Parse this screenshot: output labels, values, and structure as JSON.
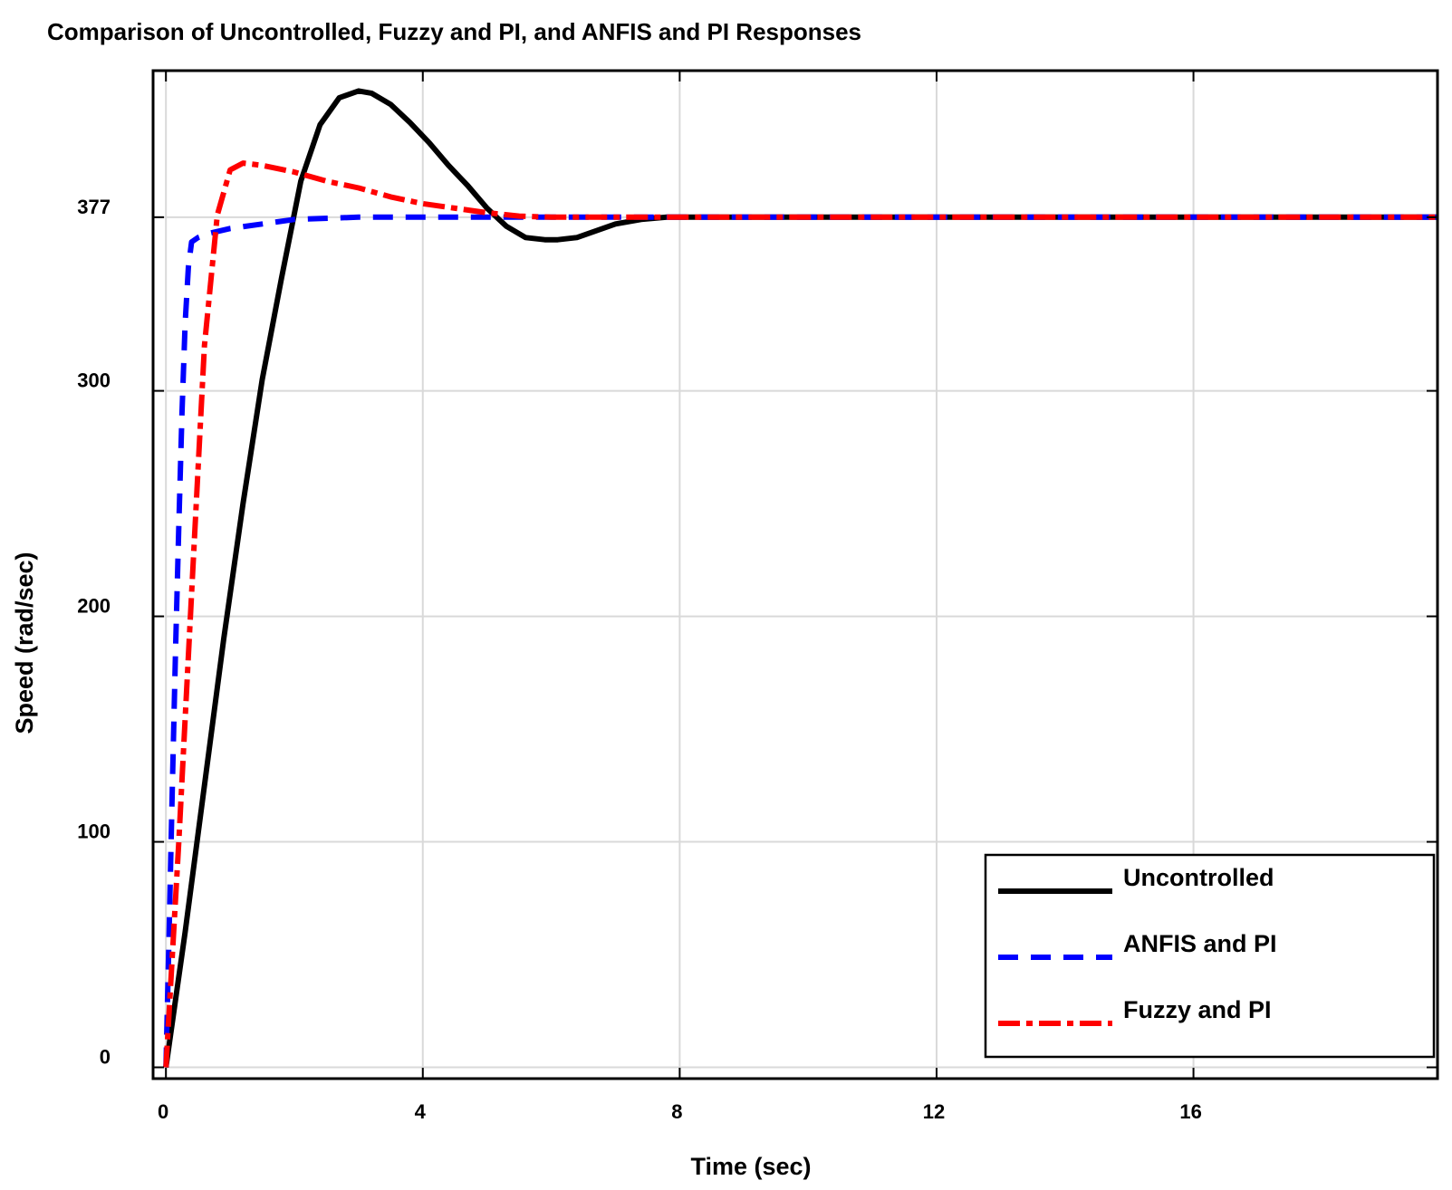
{
  "chart_data": {
    "type": "line",
    "title": "Comparison of Uncontrolled, Fuzzy and PI, and ANFIS and PI Responses",
    "xlabel": "Time (sec)",
    "ylabel": "Speed (rad/sec)",
    "xlim": [
      -0.2,
      19.8
    ],
    "ylim": [
      -5,
      442
    ],
    "xticks": [
      0,
      4,
      8,
      12,
      16
    ],
    "yticks": [
      0,
      100,
      200,
      300,
      377
    ],
    "grid": true,
    "legend_position": "bottom-right",
    "series": [
      {
        "name": "Uncontrolled",
        "color": "#000000",
        "style": "solid",
        "x": [
          0,
          0.3,
          0.6,
          0.9,
          1.2,
          1.5,
          1.8,
          2.1,
          2.4,
          2.7,
          3.0,
          3.2,
          3.5,
          3.8,
          4.1,
          4.4,
          4.7,
          5.0,
          5.3,
          5.6,
          5.9,
          6.1,
          6.4,
          6.7,
          7.0,
          7.4,
          7.8,
          8.5,
          10,
          12,
          14,
          16,
          18,
          19.8
        ],
        "y": [
          0,
          60,
          125,
          190,
          250,
          305,
          350,
          393,
          418,
          430,
          433,
          432,
          427,
          419,
          410,
          400,
          391,
          381,
          373,
          368,
          367,
          367,
          368,
          371,
          374,
          376,
          377,
          377,
          377,
          377,
          377,
          377,
          377,
          377
        ]
      },
      {
        "name": "ANFIS and PI",
        "color": "#0000ff",
        "style": "dashed",
        "x": [
          0,
          0.05,
          0.1,
          0.15,
          0.2,
          0.25,
          0.3,
          0.35,
          0.4,
          0.5,
          0.7,
          1.0,
          1.5,
          2.0,
          3.0,
          4.0,
          5.0,
          6.0,
          8.0,
          10,
          12,
          14,
          16,
          18,
          19.8
        ],
        "y": [
          0,
          60,
          125,
          185,
          240,
          290,
          330,
          355,
          366,
          368,
          370,
          372,
          374,
          376,
          377,
          377,
          377,
          377,
          377,
          377,
          377,
          377,
          377,
          377,
          377
        ]
      },
      {
        "name": "Fuzzy and PI",
        "color": "#ff0000",
        "style": "dashdot",
        "x": [
          0,
          0.2,
          0.4,
          0.6,
          0.8,
          1.0,
          1.2,
          1.5,
          2.0,
          2.5,
          3.0,
          3.5,
          4.0,
          4.5,
          5.0,
          5.5,
          6.0,
          7.0,
          8.0,
          10,
          12,
          14,
          16,
          18,
          19.8
        ],
        "y": [
          0,
          100,
          210,
          320,
          378,
          398,
          401,
          400,
          397,
          393,
          390,
          386,
          383,
          381,
          379,
          377.5,
          377,
          377,
          377,
          377,
          377,
          377,
          377,
          377,
          377
        ]
      }
    ]
  }
}
